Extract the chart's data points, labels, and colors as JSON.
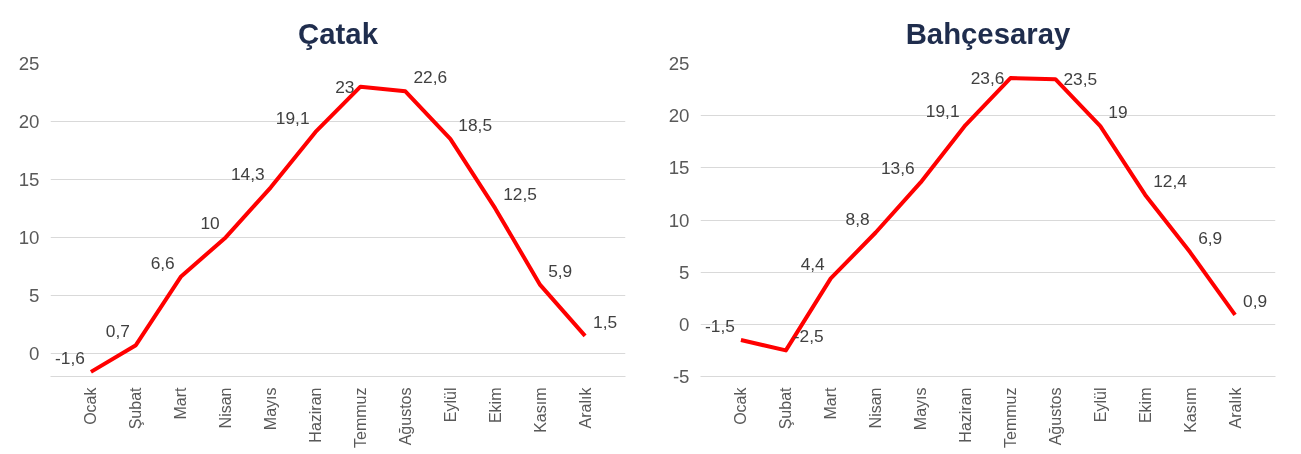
{
  "chart_data": [
    {
      "type": "line",
      "title": "Çatak",
      "categories": [
        "Ocak",
        "Şubat",
        "Mart",
        "Nisan",
        "Mayıs",
        "Haziran",
        "Temmuz",
        "Ağustos",
        "Eylül",
        "Ekim",
        "Kasım",
        "Aralık"
      ],
      "series": [
        {
          "color": "#ff0000",
          "values": [
            -1.6,
            0.7,
            6.6,
            10,
            14.3,
            19.1,
            23,
            22.6,
            18.5,
            12.5,
            5.9,
            1.5
          ],
          "value_labels": [
            "-1,6",
            "0,7",
            "6,6",
            "10",
            "14,3",
            "19,1",
            "23",
            "22,6",
            "18,5",
            "12,5",
            "5,9",
            "1,5"
          ]
        }
      ],
      "ylim": [
        -2,
        25
      ],
      "yticks": [
        0,
        5,
        10,
        15,
        20,
        25
      ],
      "grid": "y",
      "marker": "none",
      "line_style": "solid"
    },
    {
      "type": "line",
      "title": "Bahçesaray",
      "categories": [
        "Ocak",
        "Şubat",
        "Mart",
        "Nisan",
        "Mayıs",
        "Haziran",
        "Temmuz",
        "Ağustos",
        "Eylül",
        "Ekim",
        "Kasım",
        "Aralık"
      ],
      "series": [
        {
          "color": "#ff0000",
          "values": [
            -1.5,
            -2.5,
            4.4,
            8.8,
            13.6,
            19.1,
            23.6,
            23.5,
            19,
            12.4,
            6.9,
            0.9
          ],
          "value_labels": [
            "-1,5",
            "-2,5",
            "4,4",
            "8,8",
            "13,6",
            "19,1",
            "23,6",
            "23,5",
            "19",
            "12,4",
            "6,9",
            "0,9"
          ]
        }
      ],
      "ylim": [
        -5,
        25
      ],
      "yticks": [
        -5,
        0,
        5,
        10,
        15,
        20,
        25
      ],
      "grid": "y",
      "marker": "none",
      "line_style": "solid"
    }
  ]
}
